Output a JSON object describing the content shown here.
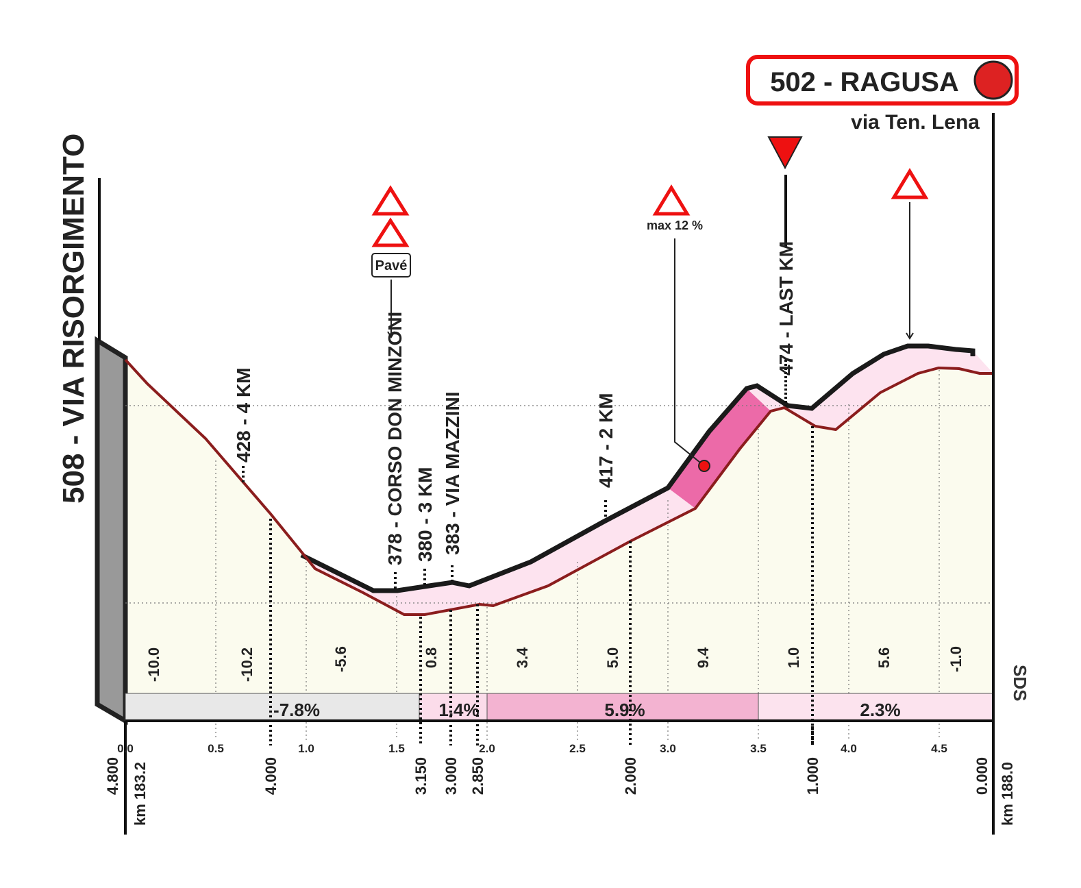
{
  "finish": {
    "title": "502 - RAGUSA",
    "street": "via Ten. Lena"
  },
  "start": {
    "label": "508 - VIA RISORGIMENTO"
  },
  "annotations": [
    "428 - 4 KM",
    "378 - CORSO DON MINZONI",
    "380 - 3 KM",
    "383 - VIA MAZZINI",
    "417 - 2 KM",
    "474 - LAST KM"
  ],
  "signs": {
    "pave": "Pavé",
    "max_gradient": "max 12 %"
  },
  "gradients": [
    "-10.0",
    "-10.2",
    "-5.6",
    "0.8",
    "3.4",
    "5.0",
    "9.4",
    "1.0",
    "5.6",
    "-1.0"
  ],
  "sectors": [
    "-7.8%",
    "1.4%",
    "5.9%",
    "2.3%"
  ],
  "km_ticks": [
    "0.0",
    "0.5",
    "1.0",
    "1.5",
    "2.0",
    "2.5",
    "3.0",
    "3.5",
    "4.0",
    "4.5"
  ],
  "distance_marks": [
    "4.800",
    "4.000",
    "3.150",
    "3.000",
    "2.850",
    "2.000",
    "1.000",
    "0.000"
  ],
  "km_start": "km 183.2",
  "km_end": "km 188.0",
  "logo": "SDS"
}
